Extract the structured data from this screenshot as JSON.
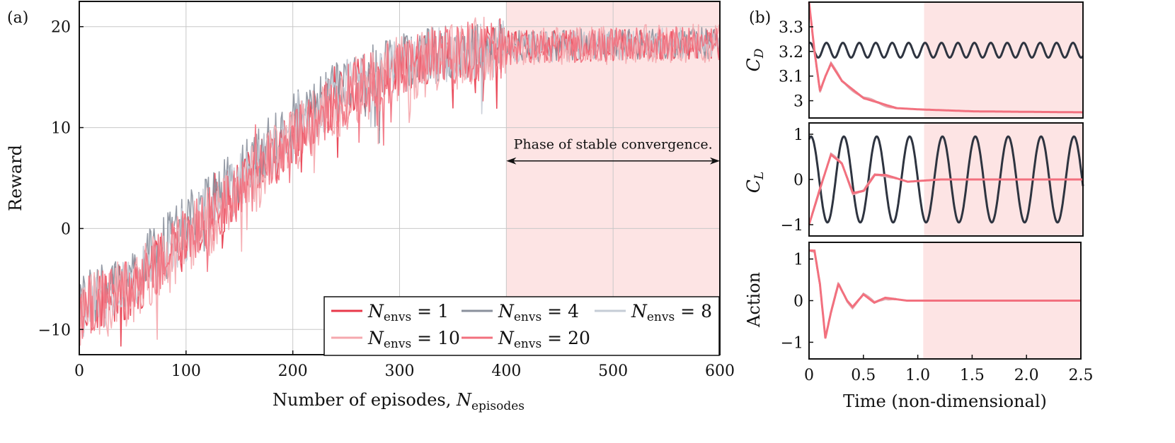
{
  "chart_data": [
    {
      "panel_label": "(a)",
      "type": "line",
      "xlabel": "Number of episodes, ",
      "xlabel_symbol": "N",
      "xlabel_sub": "episodes",
      "ylabel": "Reward",
      "xlim": [
        0,
        600
      ],
      "ylim": [
        -12.5,
        22.5
      ],
      "xticks": [
        0,
        100,
        200,
        300,
        400,
        500,
        600
      ],
      "yticks": [
        -10,
        0,
        10,
        20
      ],
      "grid": true,
      "shaded_region": {
        "x": [
          400,
          600
        ],
        "color": "#fde4e4"
      },
      "annotation": {
        "text": "Phase of stable convergence.",
        "arrow_from": 400,
        "arrow_to": 600,
        "y": 6.7
      },
      "legend_placement": "bottom-right",
      "legend": [
        {
          "label": "N",
          "sub": "envs",
          "op": " = ",
          "value": "1",
          "color": "#e8384a"
        },
        {
          "label": "N",
          "sub": "envs",
          "op": " = ",
          "value": "4",
          "color": "#8a909c"
        },
        {
          "label": "N",
          "sub": "envs",
          "op": " = ",
          "value": "8",
          "color": "#c5ccd6"
        },
        {
          "label": "N",
          "sub": "envs",
          "op": " = ",
          "value": "10",
          "color": "#f5a8ae"
        },
        {
          "label": "N",
          "sub": "envs",
          "op": " = ",
          "value": "20",
          "color": "#f2707e"
        }
      ],
      "series": [
        {
          "name": "N_envs = 1",
          "color": "#e8384a",
          "trend": [
            [
              0,
              -8
            ],
            [
              50,
              -6
            ],
            [
              100,
              -1
            ],
            [
              150,
              4
            ],
            [
              200,
              9
            ],
            [
              250,
              13.5
            ],
            [
              300,
              16
            ],
            [
              350,
              17.3
            ],
            [
              400,
              18
            ],
            [
              500,
              18.2
            ],
            [
              600,
              18.4
            ]
          ],
          "noise_amplitude": 1.8
        },
        {
          "name": "N_envs = 4",
          "color": "#8a909c",
          "trend": [
            [
              0,
              -7.5
            ],
            [
              50,
              -4.5
            ],
            [
              100,
              0.5
            ],
            [
              150,
              5.5
            ],
            [
              200,
              10.5
            ],
            [
              250,
              14.5
            ],
            [
              300,
              16.6
            ],
            [
              350,
              17.6
            ],
            [
              400,
              18
            ],
            [
              500,
              18.3
            ],
            [
              600,
              18.4
            ]
          ],
          "noise_amplitude": 1.8
        },
        {
          "name": "N_envs = 8",
          "color": "#c5ccd6",
          "trend": [
            [
              0,
              -8.5
            ],
            [
              50,
              -5.5
            ],
            [
              100,
              -0.5
            ],
            [
              150,
              4.5
            ],
            [
              200,
              9.5
            ],
            [
              250,
              14
            ],
            [
              300,
              16.3
            ],
            [
              350,
              17.4
            ],
            [
              400,
              18
            ],
            [
              500,
              18.2
            ],
            [
              600,
              18.4
            ]
          ],
          "noise_amplitude": 1.8
        },
        {
          "name": "N_envs = 10",
          "color": "#f5a8ae",
          "trend": [
            [
              0,
              -8.5
            ],
            [
              50,
              -6
            ],
            [
              100,
              -1.5
            ],
            [
              150,
              3.5
            ],
            [
              200,
              8.5
            ],
            [
              250,
              13
            ],
            [
              300,
              15.8
            ],
            [
              350,
              17.2
            ],
            [
              400,
              17.9
            ],
            [
              500,
              18.2
            ],
            [
              600,
              18.4
            ]
          ],
          "noise_amplitude": 2.2
        },
        {
          "name": "N_envs = 20",
          "color": "#f2707e",
          "trend": [
            [
              0,
              -8
            ],
            [
              50,
              -6
            ],
            [
              100,
              -1
            ],
            [
              150,
              4
            ],
            [
              200,
              9
            ],
            [
              250,
              13.3
            ],
            [
              300,
              15.9
            ],
            [
              350,
              17.3
            ],
            [
              400,
              17.9
            ],
            [
              500,
              18.2
            ],
            [
              600,
              18.4
            ]
          ],
          "noise_amplitude": 1.9
        }
      ]
    },
    {
      "panel_label": "(b)",
      "type": "line",
      "subplots": [
        {
          "ylabel_symbol": "C",
          "ylabel_sub": "D",
          "xlim": [
            0,
            2.5
          ],
          "ylim": [
            2.93,
            3.4
          ],
          "yticks": [
            3.0,
            3.1,
            3.2,
            3.3
          ],
          "ytick_labels": [
            "3",
            "3.1",
            "3.2",
            "3.3"
          ],
          "shaded_region": {
            "x": [
              1.05,
              2.5
            ]
          },
          "uncontrolled": {
            "color": "#2e3440",
            "mean": 3.205,
            "amplitude": 0.03,
            "period": 0.15
          },
          "controlled": {
            "color": "#f2707e",
            "description_values": [
              [
                0,
                3.4
              ],
              [
                0.05,
                3.2
              ],
              [
                0.1,
                3.04
              ],
              [
                0.15,
                3.1
              ],
              [
                0.2,
                3.15
              ],
              [
                0.3,
                3.08
              ],
              [
                0.5,
                3.01
              ],
              [
                0.8,
                2.97
              ],
              [
                1.0,
                2.965
              ],
              [
                1.5,
                2.957
              ],
              [
                2.5,
                2.953
              ]
            ]
          }
        },
        {
          "ylabel_symbol": "C",
          "ylabel_sub": "L",
          "xlim": [
            0,
            2.5
          ],
          "ylim": [
            -1.25,
            1.25
          ],
          "yticks": [
            -1,
            0,
            1
          ],
          "ytick_labels": [
            "−1",
            "0",
            "1"
          ],
          "shaded_region": {
            "x": [
              1.05,
              2.5
            ]
          },
          "uncontrolled": {
            "color": "#2e3440",
            "mean": 0,
            "amplitude": 0.95,
            "period": 0.3
          },
          "controlled": {
            "color": "#f2707e",
            "description_values": [
              [
                0,
                -1.0
              ],
              [
                0.1,
                -0.2
              ],
              [
                0.2,
                0.55
              ],
              [
                0.3,
                0.35
              ],
              [
                0.4,
                -0.3
              ],
              [
                0.5,
                -0.25
              ],
              [
                0.6,
                0.1
              ],
              [
                0.7,
                0.1
              ],
              [
                0.9,
                -0.05
              ],
              [
                1.2,
                0.0
              ],
              [
                2.5,
                0.0
              ]
            ]
          }
        },
        {
          "ylabel": "Action",
          "xlim": [
            0,
            2.5
          ],
          "ylim": [
            -1.4,
            1.4
          ],
          "yticks": [
            -1,
            0,
            1
          ],
          "ytick_labels": [
            "−1",
            "0",
            "1"
          ],
          "shaded_region": {
            "x": [
              1.05,
              2.5
            ]
          },
          "xticks": [
            0,
            0.5,
            1.0,
            1.5,
            2.0,
            2.5
          ],
          "xtick_labels": [
            "0",
            "0.5",
            "1.0",
            "1.5",
            "2.0",
            "2.5"
          ],
          "xlabel": "Time (non-dimensional)",
          "controlled": {
            "color": "#f2707e",
            "description_values": [
              [
                0,
                1.2
              ],
              [
                0.05,
                1.2
              ],
              [
                0.1,
                0.4
              ],
              [
                0.15,
                -0.9
              ],
              [
                0.2,
                -0.3
              ],
              [
                0.27,
                0.4
              ],
              [
                0.35,
                0.0
              ],
              [
                0.4,
                -0.15
              ],
              [
                0.5,
                0.15
              ],
              [
                0.6,
                -0.05
              ],
              [
                0.7,
                0.07
              ],
              [
                0.9,
                0.0
              ],
              [
                2.5,
                0.0
              ]
            ]
          }
        }
      ]
    }
  ]
}
